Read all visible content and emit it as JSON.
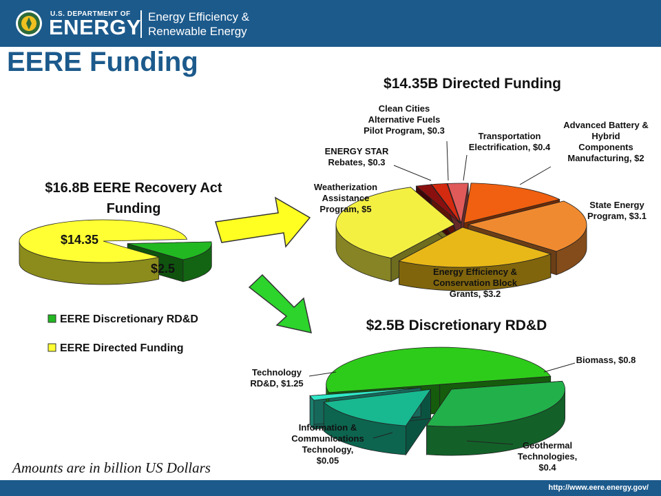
{
  "header": {
    "doe_small": "U.S. DEPARTMENT OF",
    "doe_big": "ENERGY",
    "eere_line1": "Energy Efficiency &",
    "eere_line2": "Renewable Energy"
  },
  "page_title": "EERE Funding",
  "note": "Amounts are in billion US Dollars",
  "footer_url": "http://www.eere.energy.gov/",
  "chart_data": [
    {
      "type": "pie",
      "title": [
        "$16.8B EERE Recovery Act",
        "Funding"
      ],
      "slices": [
        {
          "label": "$14.35",
          "legend": "EERE Directed Funding",
          "value": 14.35,
          "color": "#ffff33"
        },
        {
          "label": "$2.5",
          "legend": "EERE Discretionary RD&D",
          "value": 2.5,
          "color": "#22b822"
        }
      ],
      "legend_placement": "bottom"
    },
    {
      "type": "pie",
      "title": "$14.35B Directed Funding",
      "slices": [
        {
          "lines": [
            "Weatherization",
            "Assistance",
            "Program, $5"
          ],
          "value": 5,
          "color": "#f4f042"
        },
        {
          "lines": [
            "ENERGY STAR",
            "Rebates, $0.3"
          ],
          "value": 0.3,
          "color": "#8a1010"
        },
        {
          "lines": [
            "Clean Cities",
            "Alternative Fuels",
            "Pilot Program, $0.3"
          ],
          "value": 0.3,
          "color": "#d42a10"
        },
        {
          "lines": [
            "Transportation",
            "Electrification, $0.4"
          ],
          "value": 0.4,
          "color": "#e05a5a"
        },
        {
          "lines": [
            "Advanced Battery &",
            "Hybrid",
            "Components",
            "Manufacturing, $2"
          ],
          "value": 2,
          "color": "#f06010"
        },
        {
          "lines": [
            "State Energy",
            "Program, $3.1"
          ],
          "value": 3.1,
          "color": "#f08a30"
        },
        {
          "lines": [
            "Energy Efficiency &",
            "Conservation Block",
            "Grants, $3.2"
          ],
          "value": 3.2,
          "color": "#e8b818"
        }
      ]
    },
    {
      "type": "pie",
      "title": "$2.5B Discretionary RD&D",
      "slices": [
        {
          "lines": [
            "Technology",
            "RD&D, $1.25"
          ],
          "value": 1.25,
          "color": "#2ecc1a"
        },
        {
          "lines": [
            "Biomass, $0.8"
          ],
          "value": 0.8,
          "color": "#22b04a"
        },
        {
          "lines": [
            "Geothermal",
            "Technologies,",
            "$0.4"
          ],
          "value": 0.4,
          "color": "#18b890"
        },
        {
          "lines": [
            "Information &",
            "Communications",
            "Technology,",
            "$0.05"
          ],
          "value": 0.05,
          "color": "#30e8c8"
        }
      ]
    }
  ]
}
